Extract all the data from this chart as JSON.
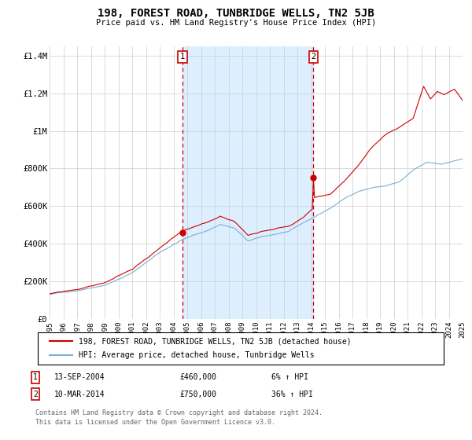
{
  "title": "198, FOREST ROAD, TUNBRIDGE WELLS, TN2 5JB",
  "subtitle": "Price paid vs. HM Land Registry's House Price Index (HPI)",
  "ylim": [
    0,
    1450000
  ],
  "yticks": [
    0,
    200000,
    400000,
    600000,
    800000,
    1000000,
    1200000,
    1400000
  ],
  "ytick_labels": [
    "£0",
    "£200K",
    "£400K",
    "£600K",
    "£800K",
    "£1M",
    "£1.2M",
    "£1.4M"
  ],
  "sale1_date_label": "13-SEP-2004",
  "sale1_price": 460000,
  "sale1_label": "£460,000",
  "sale1_pct": "6% ↑ HPI",
  "sale2_date_label": "10-MAR-2014",
  "sale2_price": 750000,
  "sale2_label": "£750,000",
  "sale2_pct": "36% ↑ HPI",
  "legend_line1": "198, FOREST ROAD, TUNBRIDGE WELLS, TN2 5JB (detached house)",
  "legend_line2": "HPI: Average price, detached house, Tunbridge Wells",
  "footer1": "Contains HM Land Registry data © Crown copyright and database right 2024.",
  "footer2": "This data is licensed under the Open Government Licence v3.0.",
  "red_color": "#cc0000",
  "blue_color": "#7aafd4",
  "shade_color": "#ddeeff",
  "background_color": "#ffffff",
  "grid_color": "#cccccc"
}
